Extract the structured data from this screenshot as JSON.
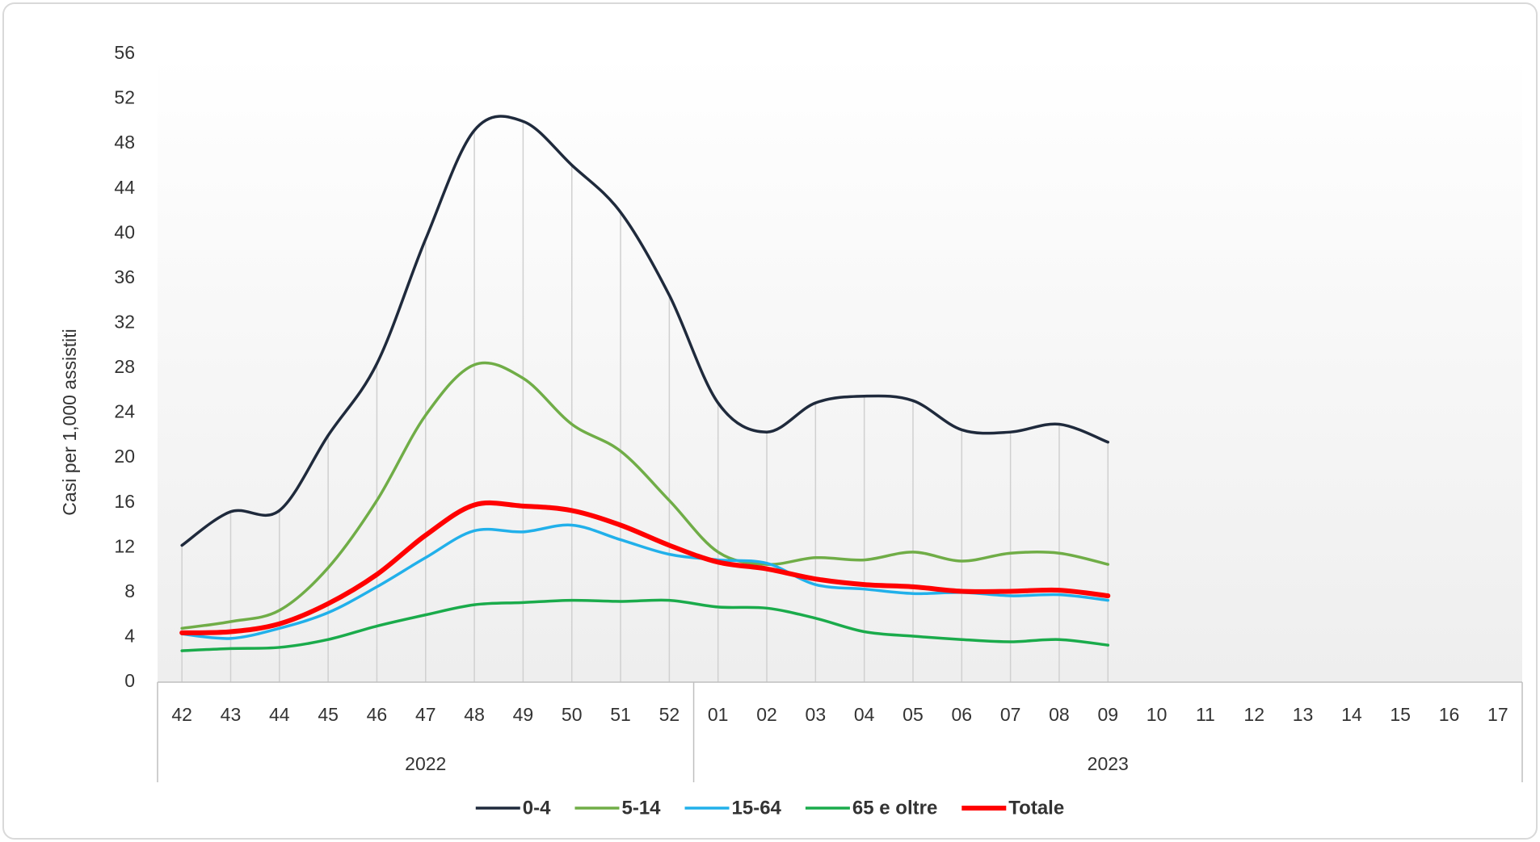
{
  "chart_data": {
    "type": "line",
    "y_axis_title": "Casi per 1,000 assistiti",
    "categories": [
      "42",
      "43",
      "44",
      "45",
      "46",
      "47",
      "48",
      "49",
      "50",
      "51",
      "52",
      "01",
      "02",
      "03",
      "04",
      "05",
      "06",
      "07",
      "08",
      "09",
      "10",
      "11",
      "12",
      "13",
      "14",
      "15",
      "16",
      "17"
    ],
    "x_groups": [
      {
        "label": "2022",
        "count": 11
      },
      {
        "label": "2023",
        "count": 17
      }
    ],
    "ylim": [
      0,
      56
    ],
    "yticks": [
      0,
      4,
      8,
      12,
      16,
      20,
      24,
      28,
      32,
      36,
      40,
      44,
      48,
      52,
      56
    ],
    "smooth": true,
    "legend": "bottom",
    "series": [
      {
        "name": "0-4",
        "color": "#1f2a3c",
        "line_width": 3.5,
        "values": [
          12.2,
          15.2,
          15.3,
          22.0,
          28.4,
          39.5,
          49.2,
          50.0,
          46.1,
          41.9,
          34.5,
          24.9,
          22.3,
          24.9,
          25.5,
          25.1,
          22.5,
          22.3,
          23.0,
          21.4,
          null,
          null,
          null,
          null,
          null,
          null,
          null,
          null
        ]
      },
      {
        "name": "5-14",
        "color": "#70ad47",
        "line_width": 3.5,
        "values": [
          4.8,
          5.4,
          6.4,
          10.2,
          16.2,
          23.8,
          28.3,
          27.1,
          23.0,
          20.6,
          16.2,
          11.6,
          10.5,
          11.1,
          10.9,
          11.6,
          10.8,
          11.5,
          11.5,
          10.5,
          null,
          null,
          null,
          null,
          null,
          null,
          null,
          null
        ]
      },
      {
        "name": "15-64",
        "color": "#21b0ea",
        "line_width": 3.5,
        "values": [
          4.3,
          3.9,
          4.8,
          6.2,
          8.5,
          11.1,
          13.5,
          13.4,
          14.0,
          12.7,
          11.4,
          10.9,
          10.6,
          8.7,
          8.3,
          7.9,
          8.0,
          7.7,
          7.8,
          7.3,
          null,
          null,
          null,
          null,
          null,
          null,
          null,
          null
        ]
      },
      {
        "name": "65 e oltre",
        "color": "#1aab4b",
        "line_width": 3.5,
        "values": [
          2.8,
          3.0,
          3.1,
          3.8,
          5.0,
          6.0,
          6.9,
          7.1,
          7.3,
          7.2,
          7.3,
          6.7,
          6.6,
          5.7,
          4.5,
          4.1,
          3.8,
          3.6,
          3.8,
          3.3,
          null,
          null,
          null,
          null,
          null,
          null,
          null,
          null
        ]
      },
      {
        "name": "Totale",
        "color": "#ff0000",
        "line_width": 6,
        "values": [
          4.4,
          4.5,
          5.2,
          7.0,
          9.6,
          13.1,
          15.8,
          15.7,
          15.3,
          14.0,
          12.2,
          10.7,
          10.1,
          9.2,
          8.7,
          8.5,
          8.1,
          8.1,
          8.2,
          7.7,
          null,
          null,
          null,
          null,
          null,
          null,
          null,
          null
        ]
      }
    ]
  }
}
